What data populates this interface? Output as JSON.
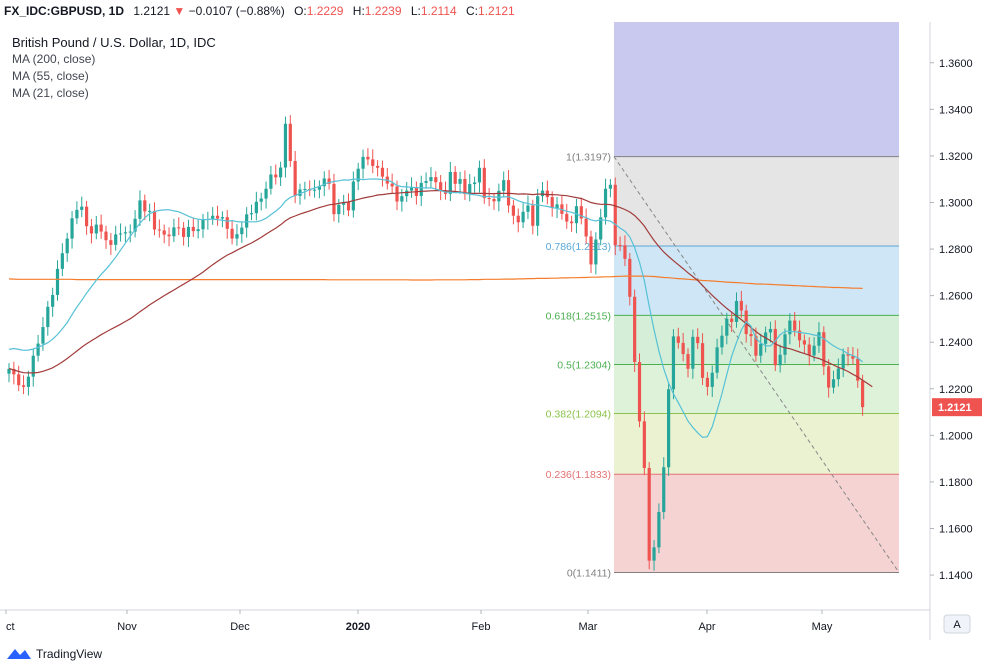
{
  "header": {
    "symbol": "FX_IDC:GBPUSD, 1D",
    "price": "1.2121",
    "arrow": "▼",
    "change": "−0.0107 (−0.88%)",
    "o_label": "O:",
    "o_value": "1.2229",
    "h_label": "H:",
    "h_value": "1.2239",
    "l_label": "L:",
    "l_value": "1.2114",
    "c_label": "C:",
    "c_value": "1.2121"
  },
  "legend": {
    "title": "British Pound / U.S. Dollar, 1D, IDC",
    "ma200": "MA (200, close)",
    "ma55": "MA (55, close)",
    "ma21": "MA (21, close)"
  },
  "footer": {
    "brand": "TradingView",
    "auto_button": "A"
  },
  "colors": {
    "up": "#26a69a",
    "down": "#ef5350",
    "ma200": "#f57c2c",
    "ma55": "#a23b3b",
    "ma21": "#56c1d6"
  },
  "chart_data": {
    "type": "candlestick",
    "y_axis": {
      "range": [
        1.125,
        1.3775
      ],
      "ticks": [
        "1.1400",
        "1.1600",
        "1.1800",
        "1.2000",
        "1.2200",
        "1.2400",
        "1.2600",
        "1.2800",
        "1.3000",
        "1.3200",
        "1.3400",
        "1.3600"
      ]
    },
    "x_axis": {
      "labels": [
        "ct",
        "Nov",
        "Dec",
        "2020",
        "Feb",
        "Mar",
        "Apr",
        "May"
      ]
    },
    "last_price_label": "1.2121",
    "fibonacci": [
      {
        "label": "1(1.3197)",
        "value": 1.3197,
        "band": "#e0e0e0"
      },
      {
        "label": "0.786(1.2813)",
        "value": 1.2813,
        "band": "#e0e0e0"
      },
      {
        "label": "0.618(1.2515)",
        "value": 1.2515,
        "band": "#c6e2f3"
      },
      {
        "label": "0.5(1.2304)",
        "value": 1.2304,
        "band": "#cdebd0"
      },
      {
        "label": "0.382(1.2094)",
        "value": 1.2094,
        "band": "#d8f0d4"
      },
      {
        "label": "0.236(1.1833)",
        "value": 1.1833,
        "band": "#e6f0c9"
      },
      {
        "label": "0(1.1411)",
        "value": 1.1411,
        "band": "#f3cbcb"
      }
    ],
    "fib_colors": [
      "#808080",
      "#5aa8d8",
      "#4caf50",
      "#4caf50",
      "#8bc34a",
      "#e57373",
      "#808080"
    ],
    "above_band_color": "#c9c9f0",
    "closes": [
      1.2285,
      1.2262,
      1.2215,
      1.2208,
      1.2252,
      1.2342,
      1.2394,
      1.2465,
      1.2552,
      1.2603,
      1.2715,
      1.2782,
      1.2845,
      1.2932,
      1.2968,
      1.2982,
      1.2898,
      1.2867,
      1.2905,
      1.2875,
      1.2838,
      1.2818,
      1.2863,
      1.2867,
      1.2872,
      1.2875,
      1.293,
      1.3009,
      1.2962,
      1.2964,
      1.2884,
      1.288,
      1.2862,
      1.2855,
      1.2893,
      1.2891,
      1.2852,
      1.2895,
      1.2877,
      1.2885,
      1.2926,
      1.2929,
      1.2943,
      1.2931,
      1.2937,
      1.2887,
      1.2845,
      1.2864,
      1.2892,
      1.2949,
      1.2954,
      1.3003,
      1.3017,
      1.3059,
      1.312,
      1.3108,
      1.315,
      1.3338,
      1.3178,
      1.3028,
      1.3056,
      1.3058,
      1.3052,
      1.3055,
      1.307,
      1.3103,
      1.308,
      1.295,
      1.299,
      1.3002,
      1.2966,
      1.309,
      1.3145,
      1.3196,
      1.3185,
      1.3157,
      1.3149,
      1.3111,
      1.3081,
      1.3069,
      1.3004,
      1.3027,
      1.3051,
      1.3065,
      1.3028,
      1.3084,
      1.3092,
      1.3109,
      1.3087,
      1.3053,
      1.3037,
      1.3131,
      1.308,
      1.3101,
      1.3036,
      1.3079,
      1.3086,
      1.3149,
      1.3019,
      1.3015,
      1.3005,
      1.305,
      1.3096,
      1.2987,
      1.2943,
      1.2915,
      1.296,
      1.2987,
      1.29,
      1.3027,
      1.3051,
      1.3023,
      1.2976,
      1.2992,
      1.2951,
      1.2918,
      1.2911,
      1.2984,
      1.2931,
      1.2854,
      1.2734,
      1.2841,
      1.2936,
      1.3059,
      1.3076,
      1.2817,
      1.2816,
      1.2758,
      1.2595,
      1.2315,
      1.206,
      1.186,
      1.1462,
      1.1519,
      1.1671,
      1.1863,
      1.2198,
      1.2425,
      1.2397,
      1.2349,
      1.2286,
      1.2423,
      1.2396,
      1.2247,
      1.2208,
      1.2269,
      1.2378,
      1.2428,
      1.2501,
      1.2487,
      1.2577,
      1.2536,
      1.2435,
      1.2426,
      1.2342,
      1.2393,
      1.2442,
      1.2457,
      1.2301,
      1.2346,
      1.2434,
      1.2493,
      1.245,
      1.2408,
      1.239,
      1.2343,
      1.2385,
      1.2443,
      1.2296,
      1.2205,
      1.2241,
      1.2287,
      1.2348,
      1.2342,
      1.2329,
      1.2235,
      1.2121
    ],
    "ma21": [
      1.2369,
      1.2373,
      1.2369,
      1.2365,
      1.2366,
      1.2371,
      1.2378,
      1.2387,
      1.2398,
      1.2413,
      1.2433,
      1.2457,
      1.2484,
      1.2518,
      1.2551,
      1.258,
      1.2611,
      1.2638,
      1.2666,
      1.2691,
      1.2713,
      1.2738,
      1.2765,
      1.2795,
      1.2825,
      1.2855,
      1.2883,
      1.2911,
      1.2934,
      1.2952,
      1.2961,
      1.2966,
      1.2968,
      1.2969,
      1.2964,
      1.296,
      1.2951,
      1.2941,
      1.2933,
      1.2928,
      1.2926,
      1.2927,
      1.2929,
      1.2926,
      1.2924,
      1.292,
      1.2922,
      1.2918,
      1.2916,
      1.2917,
      1.2917,
      1.2917,
      1.2922,
      1.2932,
      1.2948,
      1.2963,
      1.298,
      1.3006,
      1.3022,
      1.303,
      1.3038,
      1.3046,
      1.3055,
      1.3062,
      1.3068,
      1.3078,
      1.3086,
      1.309,
      1.3093,
      1.3097,
      1.3096,
      1.31,
      1.3101,
      1.3098,
      1.31,
      1.3101,
      1.3101,
      1.3098,
      1.3096,
      1.3087,
      1.3073,
      1.3068,
      1.3067,
      1.3065,
      1.3064,
      1.3063,
      1.3062,
      1.3063,
      1.3058,
      1.3051,
      1.3044,
      1.3044,
      1.3042,
      1.3043,
      1.304,
      1.3036,
      1.3033,
      1.303,
      1.3024,
      1.3026,
      1.3024,
      1.3022,
      1.3024,
      1.3025,
      1.3017,
      1.3007,
      1.3,
      1.2996,
      1.299,
      1.299,
      1.2986,
      1.2983,
      1.2978,
      1.2975,
      1.2969,
      1.2962,
      1.2958,
      1.2951,
      1.2942,
      1.2935,
      1.2925,
      1.2921,
      1.2925,
      1.2924,
      1.292,
      1.2906,
      1.289,
      1.2877,
      1.2852,
      1.2807,
      1.2743,
      1.2665,
      1.2555,
      1.2454,
      1.2362,
      1.2285,
      1.2225,
      1.2179,
      1.214,
      1.2102,
      1.2061,
      1.2034,
      1.2011,
      1.1991,
      1.1994,
      1.2037,
      1.2107,
      1.2178,
      1.2261,
      1.2339,
      1.2399,
      1.2452,
      1.2488,
      1.2469,
      1.2416,
      1.2397,
      1.2384,
      1.2384,
      1.2405,
      1.2432,
      1.2447,
      1.2447,
      1.2445,
      1.2442,
      1.2439,
      1.2436,
      1.2431,
      1.2427,
      1.2415,
      1.2399,
      1.2384,
      1.2373,
      1.2364,
      1.235,
      1.2343,
      1.2333,
      1.2315
    ],
    "ma55": [
      1.2287,
      1.2281,
      1.2274,
      1.2269,
      1.2268,
      1.2268,
      1.227,
      1.2275,
      1.2282,
      1.229,
      1.2302,
      1.2315,
      1.233,
      1.2346,
      1.2362,
      1.2379,
      1.2393,
      1.2406,
      1.2419,
      1.2432,
      1.2444,
      1.2455,
      1.2466,
      1.2477,
      1.2489,
      1.2501,
      1.2515,
      1.2531,
      1.2545,
      1.256,
      1.2574,
      1.2587,
      1.26,
      1.2612,
      1.2624,
      1.2637,
      1.2649,
      1.2661,
      1.2674,
      1.2687,
      1.2701,
      1.2717,
      1.2733,
      1.2747,
      1.2761,
      1.2774,
      1.2784,
      1.2795,
      1.2806,
      1.2816,
      1.2826,
      1.2838,
      1.285,
      1.2864,
      1.2877,
      1.289,
      1.2904,
      1.2921,
      1.2934,
      1.2942,
      1.295,
      1.2957,
      1.2964,
      1.2971,
      1.2978,
      1.2984,
      1.299,
      1.2992,
      1.2996,
      1.3,
      1.3002,
      1.3008,
      1.3013,
      1.3019,
      1.3023,
      1.3027,
      1.3032,
      1.3034,
      1.3037,
      1.3039,
      1.304,
      1.3042,
      1.3043,
      1.3045,
      1.3046,
      1.3048,
      1.3049,
      1.305,
      1.3051,
      1.3051,
      1.305,
      1.3049,
      1.3047,
      1.3045,
      1.3042,
      1.3039,
      1.3039,
      1.3039,
      1.3039,
      1.3038,
      1.3038,
      1.3039,
      1.3039,
      1.3039,
      1.3038,
      1.3036,
      1.3037,
      1.3036,
      1.3034,
      1.3036,
      1.3036,
      1.3034,
      1.3034,
      1.3033,
      1.3031,
      1.3029,
      1.3025,
      1.3021,
      1.3017,
      1.3009,
      1.3,
      1.2995,
      1.2992,
      1.2992,
      1.2991,
      1.2985,
      1.2978,
      1.297,
      1.2959,
      1.2944,
      1.2923,
      1.2899,
      1.2867,
      1.2837,
      1.2811,
      1.2787,
      1.2768,
      1.275,
      1.2733,
      1.2716,
      1.2698,
      1.2682,
      1.2665,
      1.2644,
      1.2622,
      1.2601,
      1.2582,
      1.2563,
      1.2545,
      1.2529,
      1.2513,
      1.2497,
      1.248,
      1.2463,
      1.2446,
      1.243,
      1.2419,
      1.2407,
      1.2393,
      1.2383,
      1.2376,
      1.2372,
      1.2365,
      1.2358,
      1.2351,
      1.2344,
      1.2335,
      1.233,
      1.2321,
      1.2312,
      1.2302,
      1.2292,
      1.2284,
      1.2274,
      1.2262,
      1.2251,
      1.2237,
      1.2223,
      1.2209
    ],
    "ma200": [
      1.2672,
      1.2671,
      1.267,
      1.267,
      1.267,
      1.267,
      1.267,
      1.267,
      1.267,
      1.267,
      1.267,
      1.267,
      1.267,
      1.267,
      1.2669,
      1.2669,
      1.2669,
      1.2669,
      1.2669,
      1.2669,
      1.2669,
      1.2669,
      1.2669,
      1.2669,
      1.2669,
      1.2669,
      1.2669,
      1.2669,
      1.2669,
      1.2669,
      1.2669,
      1.2669,
      1.2669,
      1.2669,
      1.2669,
      1.2669,
      1.2669,
      1.2669,
      1.2669,
      1.2669,
      1.2669,
      1.2669,
      1.2669,
      1.2669,
      1.2669,
      1.2669,
      1.2669,
      1.2669,
      1.2669,
      1.2669,
      1.2669,
      1.2669,
      1.2669,
      1.2669,
      1.2669,
      1.2669,
      1.2669,
      1.2669,
      1.2669,
      1.2669,
      1.2669,
      1.2669,
      1.2669,
      1.2669,
      1.2669,
      1.2669,
      1.2668,
      1.2668,
      1.2668,
      1.2668,
      1.2668,
      1.2668,
      1.2668,
      1.2668,
      1.2668,
      1.2668,
      1.2668,
      1.2668,
      1.2668,
      1.2668,
      1.2668,
      1.2668,
      1.2668,
      1.2667,
      1.2667,
      1.2667,
      1.2667,
      1.2667,
      1.2668,
      1.2668,
      1.2668,
      1.2668,
      1.2668,
      1.2668,
      1.2668,
      1.2669,
      1.2669,
      1.2669,
      1.267,
      1.267,
      1.267,
      1.267,
      1.2671,
      1.2671,
      1.2671,
      1.2672,
      1.2672,
      1.2673,
      1.2673,
      1.2674,
      1.2674,
      1.2674,
      1.2675,
      1.2675,
      1.2676,
      1.2676,
      1.2677,
      1.2677,
      1.2678,
      1.2678,
      1.2679,
      1.2679,
      1.268,
      1.2681,
      1.2681,
      1.2682,
      1.2683,
      1.2684,
      1.2684,
      1.2684,
      1.2684,
      1.2684,
      1.2683,
      1.2682,
      1.268,
      1.2678,
      1.2677,
      1.2675,
      1.2673,
      1.2672,
      1.267,
      1.2669,
      1.2667,
      1.2665,
      1.2664,
      1.2663,
      1.2661,
      1.266,
      1.2658,
      1.2657,
      1.2656,
      1.2655,
      1.2653,
      1.2652,
      1.265,
      1.265,
      1.2649,
      1.2648,
      1.2647,
      1.2646,
      1.2645,
      1.2644,
      1.2643,
      1.2642,
      1.2641,
      1.264,
      1.2639,
      1.2638,
      1.2637,
      1.2636,
      1.2635,
      1.2635,
      1.2634,
      1.2633,
      1.2632,
      1.2632,
      1.2631
    ]
  }
}
